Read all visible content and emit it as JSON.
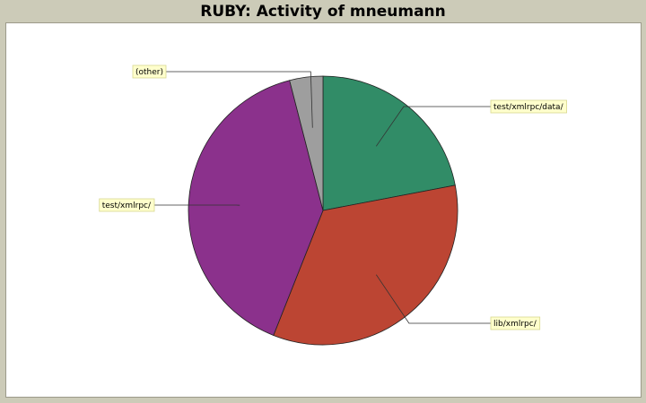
{
  "title": "RUBY: Activity of mneumann",
  "colors": {
    "background": "#cccbb8",
    "plot_bg": "#ffffff",
    "label_bg": "#ffffcc",
    "label_border": "#d8d890"
  },
  "chart_data": {
    "type": "pie",
    "title": "RUBY: Activity of mneumann",
    "slices": [
      {
        "label": "test/xmlrpc/data/",
        "value": 22,
        "color": "#318c67"
      },
      {
        "label": "lib/xmlrpc/",
        "value": 34,
        "color": "#bc4533"
      },
      {
        "label": "test/xmlrpc/",
        "value": 40,
        "color": "#8b318c"
      },
      {
        "label": "(other)",
        "value": 4,
        "color": "#9e9e9e"
      }
    ],
    "start": "12 o'clock",
    "direction": "clockwise",
    "legend": "callout labels"
  }
}
